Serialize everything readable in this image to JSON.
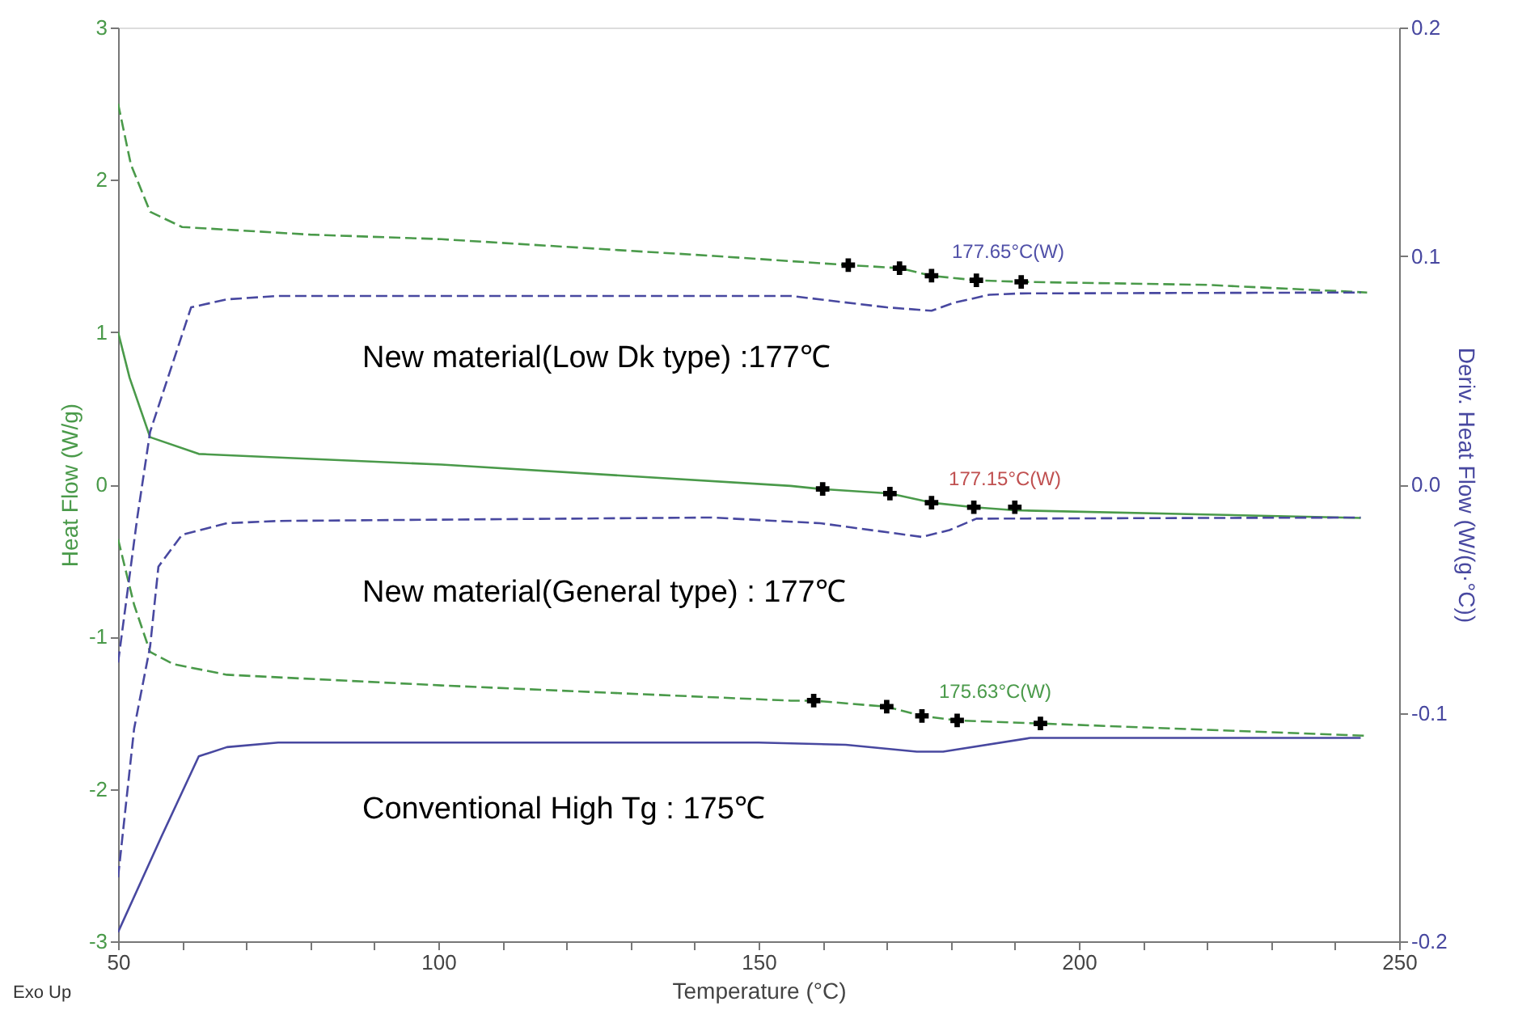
{
  "chart_data": {
    "type": "line",
    "xlabel": "Temperature (°C)",
    "ylabel": "Heat Flow (W/g)",
    "y2label": "Deriv. Heat Flow (W/(g·°C))",
    "xlim": [
      50,
      250
    ],
    "xticks": [
      50,
      {
        "value": 60,
        "label": null
      },
      {
        "value": 70,
        "label": null
      },
      {
        "value": 80,
        "label": null
      },
      {
        "value": 90,
        "label": null
      },
      100,
      {
        "value": 110,
        "label": null
      },
      {
        "value": 120,
        "label": null
      },
      {
        "value": 130,
        "label": null
      },
      {
        "value": 140,
        "label": null
      },
      150,
      {
        "value": 160,
        "label": null
      },
      {
        "value": 170,
        "label": null
      },
      {
        "value": 180,
        "label": null
      },
      {
        "value": 190,
        "label": null
      },
      200,
      {
        "value": 210,
        "label": null
      },
      {
        "value": 220,
        "label": null
      },
      {
        "value": 230,
        "label": null
      },
      {
        "value": 240,
        "label": null
      },
      250
    ],
    "ylim": [
      -3,
      3
    ],
    "yticks": [
      -3,
      -2,
      -1,
      0,
      1,
      2,
      3
    ],
    "y2lim": [
      -0.2,
      0.2
    ],
    "y2ticks": [
      -0.2,
      -0.1,
      {
        "value": 0,
        "label": "0.0"
      },
      0.1,
      0.2
    ],
    "grid": false,
    "legend": false,
    "series": [
      {
        "color": "#4a9a4a",
        "line_style": "dashed",
        "x": [
          50,
          52,
          55,
          60,
          80,
          100.5,
          143,
          164,
          172,
          177,
          184,
          191,
          220,
          245
        ],
        "values": [
          2.5,
          2.1,
          1.79,
          1.69,
          1.64,
          1.61,
          1.5,
          1.44,
          1.42,
          1.37,
          1.34,
          1.33,
          1.31,
          1.26
        ]
      },
      {
        "color": "#4848a0",
        "line_style": "dashed",
        "axis": "y2",
        "x": [
          50,
          53,
          55,
          61.4,
          67,
          75,
          155,
          170,
          177,
          180.5,
          186,
          191,
          244
        ],
        "values": [
          -0.078,
          -0.0145,
          0.023,
          0.0775,
          0.081,
          0.0825,
          0.0825,
          0.0775,
          0.076,
          0.0795,
          0.083,
          0.0836,
          0.084
        ]
      },
      {
        "color": "#4a9a4a",
        "line_style": "solid",
        "x": [
          50,
          51.8,
          55,
          62.6,
          100.5,
          155,
          159.6,
          170.5,
          177,
          183.6,
          190,
          244
        ],
        "values": [
          1.0,
          0.7,
          0.31,
          0.2,
          0.13,
          -0.01,
          -0.03,
          -0.06,
          -0.12,
          -0.15,
          -0.17,
          -0.22
        ]
      },
      {
        "color": "#4848a0",
        "line_style": "dashed",
        "axis": "y2",
        "x": [
          50,
          52.5,
          55,
          56.3,
          60,
          67,
          75,
          142.7,
          159.6,
          175.5,
          179.8,
          184,
          244
        ],
        "values": [
          -0.172,
          -0.107,
          -0.071,
          -0.036,
          -0.022,
          -0.017,
          -0.016,
          -0.0145,
          -0.017,
          -0.023,
          -0.02,
          -0.015,
          -0.0145
        ]
      },
      {
        "color": "#4a9a4a",
        "line_style": "dashed",
        "x": [
          50,
          52.5,
          55,
          58.6,
          67,
          100.5,
          155,
          158.6,
          170,
          175.5,
          181,
          194,
          244.5
        ],
        "values": [
          -0.36,
          -0.79,
          -1.1,
          -1.18,
          -1.25,
          -1.32,
          -1.42,
          -1.42,
          -1.46,
          -1.52,
          -1.55,
          -1.57,
          -1.65
        ]
      },
      {
        "color": "#4848a0",
        "line_style": "solid",
        "axis": "y2",
        "x": [
          50,
          56.8,
          62.6,
          67,
          75,
          150,
          163.6,
          174.7,
          178.8,
          192.4,
          244
        ],
        "values": [
          -0.196,
          -0.154,
          -0.119,
          -0.115,
          -0.113,
          -0.113,
          -0.114,
          -0.117,
          -0.117,
          -0.111,
          -0.111
        ]
      },
      {
        "type": "scatter",
        "color": "#000000",
        "marker": "cross",
        "x": [
          164,
          172,
          177,
          184,
          191
        ],
        "values": [
          1.44,
          1.42,
          1.37,
          1.34,
          1.33
        ]
      },
      {
        "type": "scatter",
        "color": "#000000",
        "marker": "cross",
        "x": [
          160,
          170.5,
          177,
          183.6,
          190
        ],
        "values": [
          -0.03,
          -0.06,
          -0.12,
          -0.15,
          -0.15
        ]
      },
      {
        "type": "scatter",
        "color": "#000000",
        "marker": "cross",
        "x": [
          158.6,
          170,
          175.5,
          181,
          194
        ],
        "values": [
          -1.42,
          -1.46,
          -1.52,
          -1.55,
          -1.57
        ]
      }
    ],
    "annotations": [
      {
        "text": "177.65°C(W)",
        "x": 177.65,
        "y": 1.37
      },
      {
        "text": "177.15°C(W)",
        "x": 177.15,
        "y": -0.12
      },
      {
        "text": "175.63°C(W)",
        "x": 175.63,
        "y": -1.52
      },
      "New material(Low Dk type) :177℃",
      "New material(General type) : 177℃",
      "Conventional High Tg : 175℃",
      "Exo Up"
    ]
  }
}
